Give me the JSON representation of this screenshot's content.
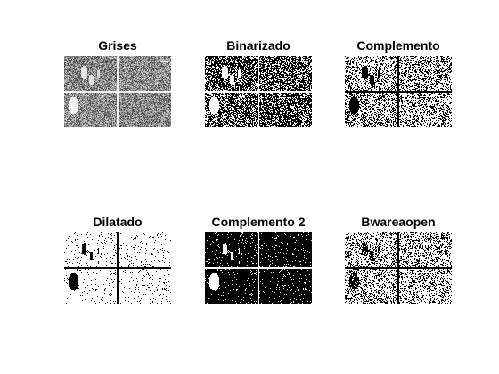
{
  "figure": {
    "background": "#ffffff",
    "subplots": [
      {
        "title": "Grises",
        "render": "gray"
      },
      {
        "title": "Binarizado",
        "render": "binary"
      },
      {
        "title": "Complemento",
        "render": "complement"
      },
      {
        "title": "Dilatado",
        "render": "dilated"
      },
      {
        "title": "Complemento 2",
        "render": "complement2"
      },
      {
        "title": "Bwareaopen",
        "render": "areaopen"
      }
    ]
  }
}
